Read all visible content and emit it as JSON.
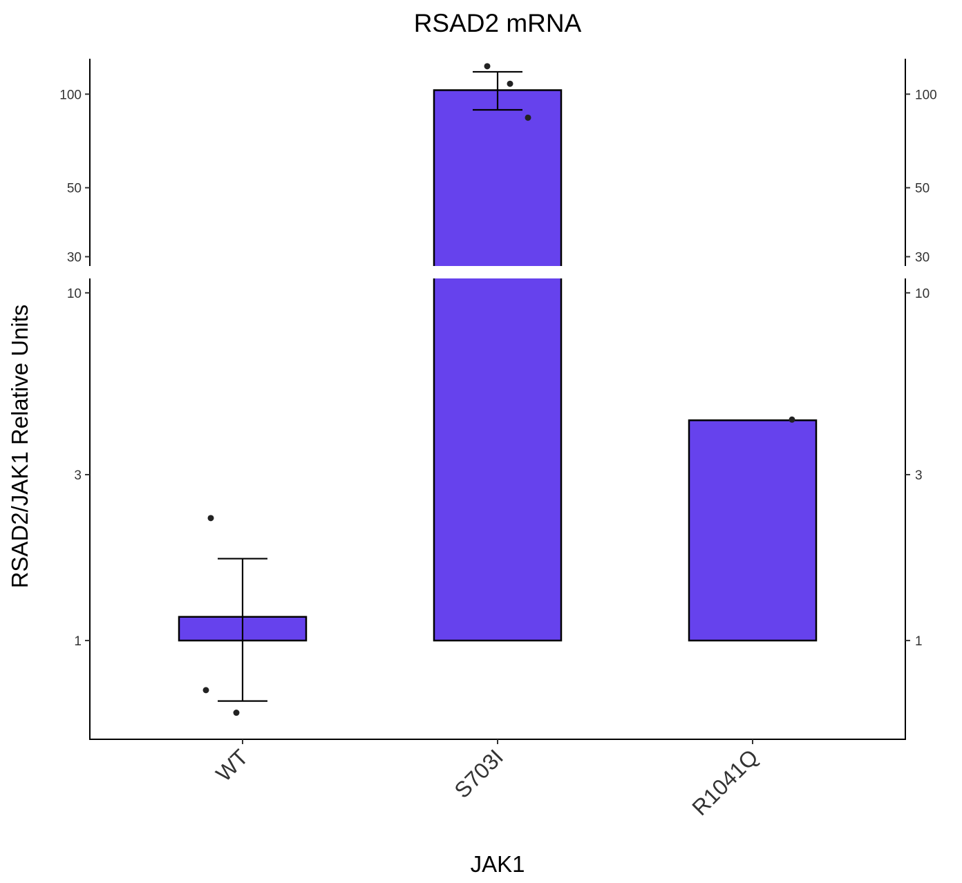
{
  "chart_data": {
    "type": "bar",
    "title": "RSAD2 mRNA",
    "xlabel": "JAK1",
    "ylabel": "RSAD2/JAK1 Relative Units",
    "y_scale": "log",
    "y_break": [
      11,
      28
    ],
    "ylim_lower": [
      0.52,
      11
    ],
    "ylim_upper": [
      28,
      130
    ],
    "yticks_lower": [
      1,
      3,
      10
    ],
    "yticks_upper": [
      30,
      50,
      100
    ],
    "categories": [
      "WT",
      "S703I",
      "R1041Q"
    ],
    "values": [
      1.17,
      103,
      4.3
    ],
    "error_low": [
      0.67,
      null,
      null
    ],
    "error_high": [
      1.72,
      null,
      null
    ],
    "error_low_upper": [
      null,
      89,
      null
    ],
    "error_high_upper": [
      null,
      118,
      null
    ],
    "points": [
      {
        "category": "WT",
        "values": [
          2.25,
          0.72,
          0.62
        ]
      },
      {
        "category": "S703I",
        "values": [
          123,
          108,
          84
        ]
      },
      {
        "category": "R1041Q",
        "values": [
          4.32
        ]
      }
    ],
    "bar_color": "#6642ED",
    "grid": false,
    "legend": "none"
  }
}
